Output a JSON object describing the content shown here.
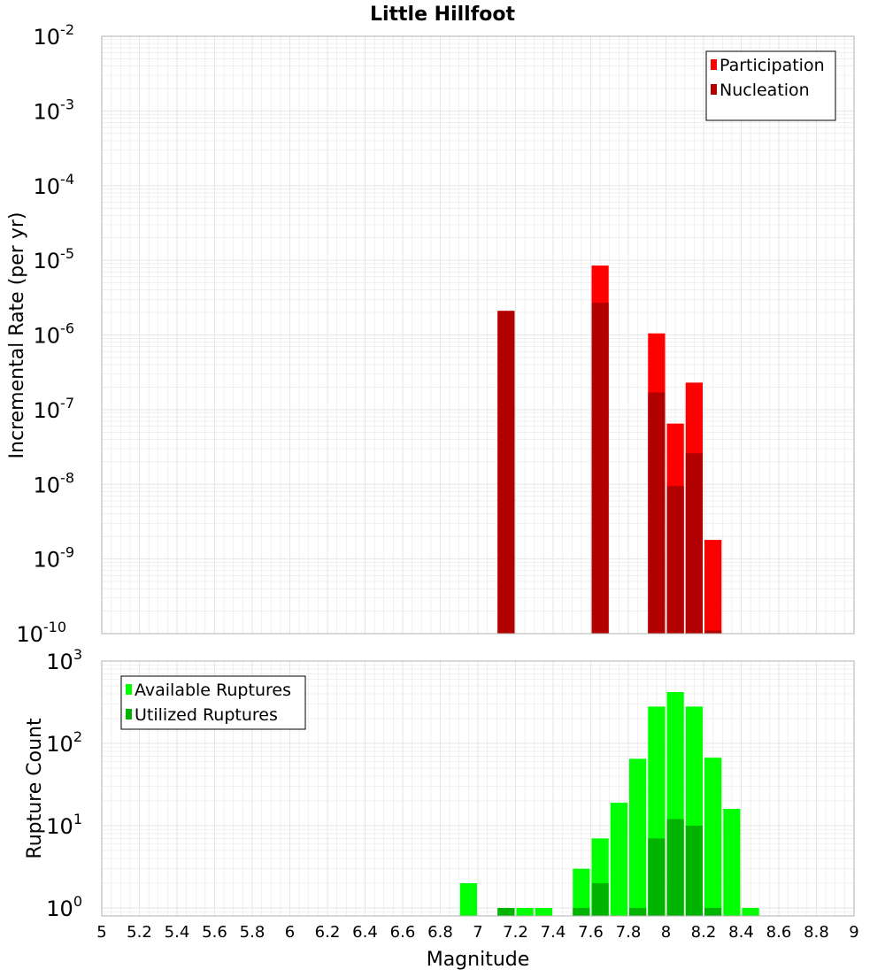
{
  "title": "Little Hillfoot",
  "xlabel": "Magnitude",
  "x_ticks": [
    "5",
    "5.2",
    "5.4",
    "5.6",
    "5.8",
    "6",
    "6.2",
    "6.4",
    "6.6",
    "6.8",
    "7",
    "7.2",
    "7.4",
    "7.6",
    "7.8",
    "8",
    "8.2",
    "8.4",
    "8.6",
    "8.8",
    "9"
  ],
  "colors": {
    "participation": "#ff0000",
    "nucleation": "#b20000",
    "available": "#00ff00",
    "utilized": "#00b400",
    "grid": "#e6e6e6",
    "frame": "#b0b0b0"
  },
  "chart_data": [
    {
      "type": "bar",
      "scale": "log",
      "ylabel": "Incremental Rate (per yr)",
      "xlim": [
        5,
        9
      ],
      "ylim": [
        1e-10,
        0.01
      ],
      "y_tick_exponents": [
        -2,
        -3,
        -4,
        -5,
        -6,
        -7,
        -8,
        -9,
        -10
      ],
      "legend_position": "top-right",
      "bar_width": 0.1,
      "grid": true,
      "series": [
        {
          "name": "Participation",
          "x": [
            7.15,
            7.65,
            7.95,
            8.05,
            8.15,
            8.25
          ],
          "values": [
            2.1e-06,
            8.5e-06,
            1.05e-06,
            6.5e-08,
            2.3e-07,
            1.8e-09
          ]
        },
        {
          "name": "Nucleation",
          "x": [
            7.15,
            7.65,
            7.95,
            8.05,
            8.15,
            8.25
          ],
          "values": [
            2.1e-06,
            2.7e-06,
            1.7e-07,
            9.5e-09,
            2.6e-08,
            1.1e-10
          ]
        }
      ]
    },
    {
      "type": "bar",
      "scale": "log",
      "ylabel": "Rupture Count",
      "xlim": [
        5,
        9
      ],
      "ylim": [
        0.8,
        1000
      ],
      "y_tick_exponents": [
        3,
        2,
        1,
        0
      ],
      "legend_position": "top-left",
      "bar_width": 0.1,
      "grid": true,
      "series": [
        {
          "name": "Available Ruptures",
          "x": [
            6.95,
            7.15,
            7.25,
            7.35,
            7.55,
            7.65,
            7.75,
            7.85,
            7.95,
            8.05,
            8.15,
            8.25,
            8.35,
            8.45
          ],
          "values": [
            2,
            1,
            1,
            1,
            3,
            7,
            19,
            65,
            280,
            420,
            280,
            67,
            16,
            1
          ]
        },
        {
          "name": "Utilized Ruptures",
          "x": [
            7.15,
            7.55,
            7.65,
            7.85,
            7.95,
            8.05,
            8.15,
            8.25
          ],
          "values": [
            1,
            1,
            2,
            1,
            7,
            12,
            10,
            1
          ]
        }
      ]
    }
  ]
}
